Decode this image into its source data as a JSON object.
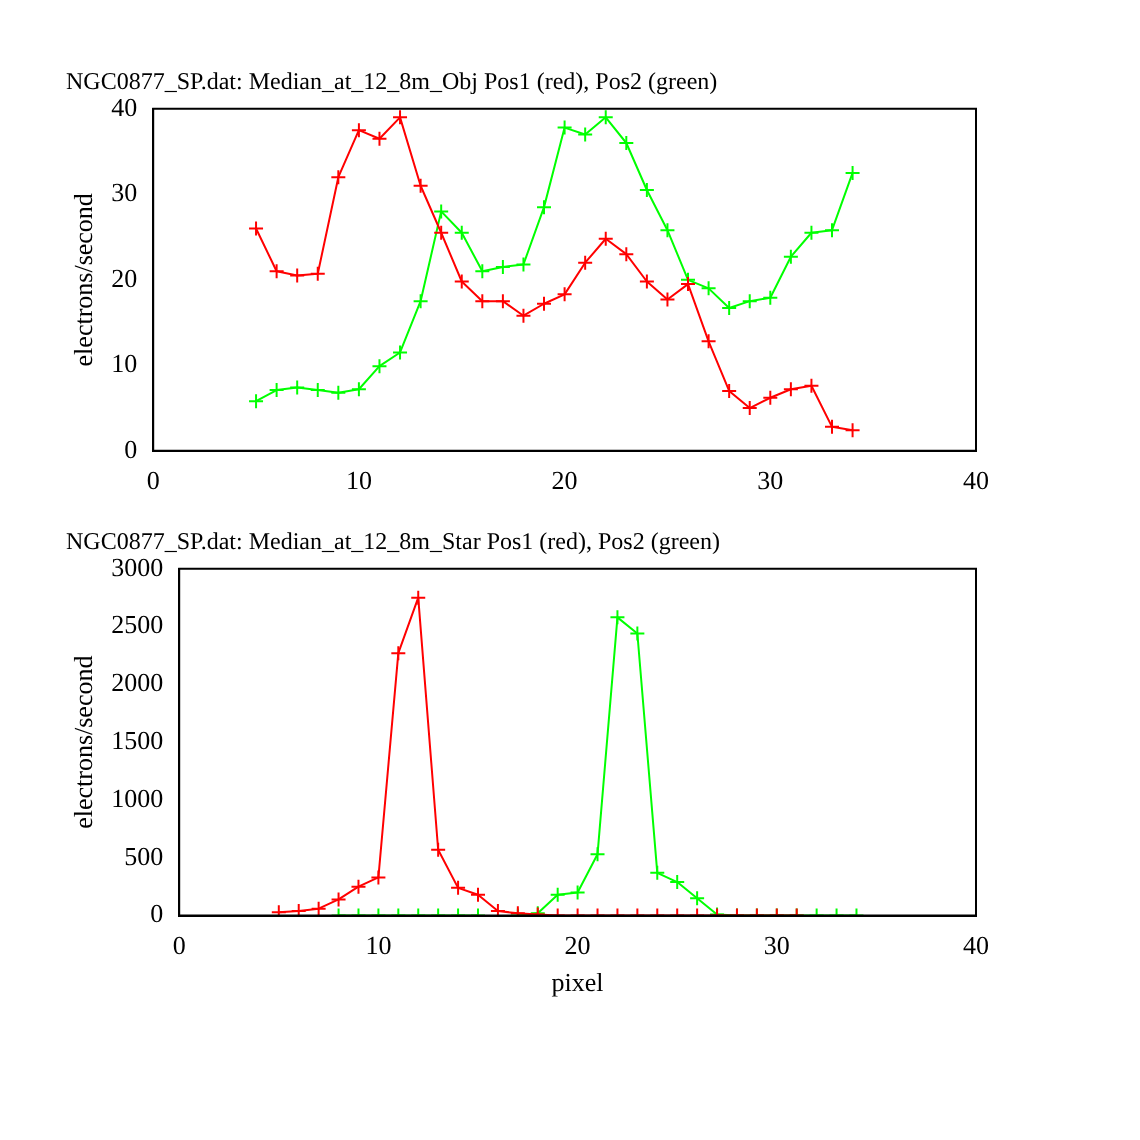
{
  "chart_data": [
    {
      "type": "line",
      "title": "NGC0877_SP.dat: Median_at_12_8m_Obj Pos1 (red), Pos2 (green)",
      "ylabel": "electrons/second",
      "x": [
        5,
        6,
        7,
        8,
        9,
        10,
        11,
        12,
        13,
        14,
        15,
        16,
        17,
        18,
        19,
        20,
        21,
        22,
        23,
        24,
        25,
        26,
        27,
        28,
        29,
        30,
        31,
        32,
        33,
        34
      ],
      "series": [
        {
          "color": "#ff0000",
          "values": [
            26,
            21,
            20.5,
            20.7,
            32,
            37.5,
            36.5,
            39,
            31,
            25.5,
            19.8,
            17.5,
            17.5,
            15.8,
            17.2,
            18.3,
            22,
            24.8,
            23,
            19.8,
            17.7,
            19.5,
            12.8,
            7,
            5,
            6.2,
            7.2,
            7.6,
            2.8,
            2.4
          ]
        },
        {
          "color": "#00ff00",
          "values": [
            5.8,
            7.1,
            7.4,
            7.1,
            6.8,
            7.2,
            9.9,
            11.5,
            17.5,
            28,
            25.5,
            21,
            21.5,
            21.8,
            28.5,
            37.8,
            37,
            39,
            36,
            30.5,
            25.8,
            20,
            19,
            16.7,
            17.5,
            17.9,
            22.7,
            25.5,
            25.8,
            32.5
          ]
        }
      ],
      "xlim": [
        0,
        40
      ],
      "xticks": [
        0,
        10,
        20,
        30,
        40
      ],
      "ylim": [
        0,
        40
      ],
      "yticks": [
        0,
        10,
        20,
        30,
        40
      ],
      "marker": "cross",
      "grid": false,
      "legend": false
    },
    {
      "type": "line",
      "title": "NGC0877_SP.dat: Median_at_12_8m_Star Pos1 (red), Pos2 (green)",
      "xlabel": "pixel",
      "ylabel": "electrons/second",
      "x": [
        5,
        6,
        7,
        8,
        9,
        10,
        11,
        12,
        13,
        14,
        15,
        16,
        17,
        18,
        19,
        20,
        21,
        22,
        23,
        24,
        25,
        26,
        27,
        28,
        29,
        30,
        31,
        32,
        33,
        34
      ],
      "series": [
        {
          "color": "#ff0000",
          "values": [
            30,
            40,
            60,
            140,
            250,
            330,
            2270,
            2750,
            570,
            240,
            180,
            40,
            20,
            10,
            0,
            0,
            0,
            0,
            0,
            0,
            0,
            0,
            0,
            0,
            0,
            0,
            0,
            null,
            null,
            null
          ]
        },
        {
          "color": "#00ff00",
          "values": [
            null,
            null,
            null,
            0,
            0,
            0,
            0,
            0,
            0,
            0,
            0,
            null,
            0,
            20,
            180,
            200,
            530,
            2580,
            2440,
            370,
            290,
            150,
            10,
            0,
            0,
            0,
            0,
            0,
            0,
            0
          ]
        }
      ],
      "xlim": [
        0,
        40
      ],
      "xticks": [
        0,
        10,
        20,
        30,
        40
      ],
      "ylim": [
        0,
        3000
      ],
      "yticks": [
        0,
        500,
        1000,
        1500,
        2000,
        2500,
        3000
      ],
      "marker": "cross",
      "grid": false,
      "legend": false
    }
  ]
}
